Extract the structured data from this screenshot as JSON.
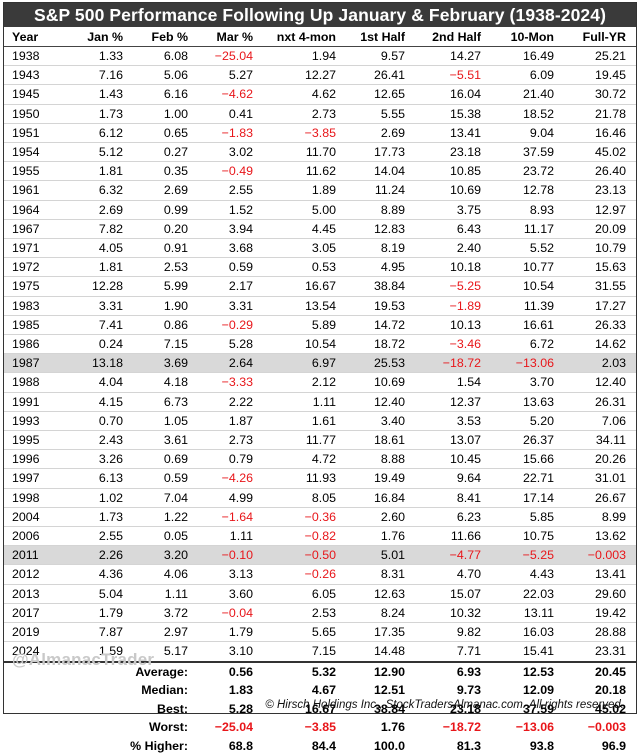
{
  "title": "S&P 500 Performance Following Up January & February (1938-2024)",
  "columns": [
    "Year",
    "Jan %",
    "Feb %",
    "Mar %",
    "nxt 4-mon",
    "1st Half",
    "2nd Half",
    "10-Mon",
    "Full-YR"
  ],
  "rows": [
    {
      "cells": [
        "1938",
        "1.33",
        "6.08",
        "−25.04",
        "1.94",
        "9.57",
        "14.27",
        "16.49",
        "25.21"
      ]
    },
    {
      "cells": [
        "1943",
        "7.16",
        "5.06",
        "5.27",
        "12.27",
        "26.41",
        "−5.51",
        "6.09",
        "19.45"
      ]
    },
    {
      "cells": [
        "1945",
        "1.43",
        "6.16",
        "−4.62",
        "4.62",
        "12.65",
        "16.04",
        "21.40",
        "30.72"
      ]
    },
    {
      "cells": [
        "1950",
        "1.73",
        "1.00",
        "0.41",
        "2.73",
        "5.55",
        "15.38",
        "18.52",
        "21.78"
      ]
    },
    {
      "cells": [
        "1951",
        "6.12",
        "0.65",
        "−1.83",
        "−3.85",
        "2.69",
        "13.41",
        "9.04",
        "16.46"
      ]
    },
    {
      "cells": [
        "1954",
        "5.12",
        "0.27",
        "3.02",
        "11.70",
        "17.73",
        "23.18",
        "37.59",
        "45.02"
      ]
    },
    {
      "cells": [
        "1955",
        "1.81",
        "0.35",
        "−0.49",
        "11.62",
        "14.04",
        "10.85",
        "23.72",
        "26.40"
      ]
    },
    {
      "cells": [
        "1961",
        "6.32",
        "2.69",
        "2.55",
        "1.89",
        "11.24",
        "10.69",
        "12.78",
        "23.13"
      ]
    },
    {
      "cells": [
        "1964",
        "2.69",
        "0.99",
        "1.52",
        "5.00",
        "8.89",
        "3.75",
        "8.93",
        "12.97"
      ]
    },
    {
      "cells": [
        "1967",
        "7.82",
        "0.20",
        "3.94",
        "4.45",
        "12.83",
        "6.43",
        "11.17",
        "20.09"
      ]
    },
    {
      "cells": [
        "1971",
        "4.05",
        "0.91",
        "3.68",
        "3.05",
        "8.19",
        "2.40",
        "5.52",
        "10.79"
      ]
    },
    {
      "cells": [
        "1972",
        "1.81",
        "2.53",
        "0.59",
        "0.53",
        "4.95",
        "10.18",
        "10.77",
        "15.63"
      ]
    },
    {
      "cells": [
        "1975",
        "12.28",
        "5.99",
        "2.17",
        "16.67",
        "38.84",
        "−5.25",
        "10.54",
        "31.55"
      ]
    },
    {
      "cells": [
        "1983",
        "3.31",
        "1.90",
        "3.31",
        "13.54",
        "19.53",
        "−1.89",
        "11.39",
        "17.27"
      ]
    },
    {
      "cells": [
        "1985",
        "7.41",
        "0.86",
        "−0.29",
        "5.89",
        "14.72",
        "10.13",
        "16.61",
        "26.33"
      ]
    },
    {
      "cells": [
        "1986",
        "0.24",
        "7.15",
        "5.28",
        "10.54",
        "18.72",
        "−3.46",
        "6.72",
        "14.62"
      ]
    },
    {
      "cells": [
        "1987",
        "13.18",
        "3.69",
        "2.64",
        "6.97",
        "25.53",
        "−18.72",
        "−13.06",
        "2.03"
      ],
      "highlight": true
    },
    {
      "cells": [
        "1988",
        "4.04",
        "4.18",
        "−3.33",
        "2.12",
        "10.69",
        "1.54",
        "3.70",
        "12.40"
      ]
    },
    {
      "cells": [
        "1991",
        "4.15",
        "6.73",
        "2.22",
        "1.11",
        "12.40",
        "12.37",
        "13.63",
        "26.31"
      ]
    },
    {
      "cells": [
        "1993",
        "0.70",
        "1.05",
        "1.87",
        "1.61",
        "3.40",
        "3.53",
        "5.20",
        "7.06"
      ]
    },
    {
      "cells": [
        "1995",
        "2.43",
        "3.61",
        "2.73",
        "11.77",
        "18.61",
        "13.07",
        "26.37",
        "34.11"
      ]
    },
    {
      "cells": [
        "1996",
        "3.26",
        "0.69",
        "0.79",
        "4.72",
        "8.88",
        "10.45",
        "15.66",
        "20.26"
      ]
    },
    {
      "cells": [
        "1997",
        "6.13",
        "0.59",
        "−4.26",
        "11.93",
        "19.49",
        "9.64",
        "22.71",
        "31.01"
      ]
    },
    {
      "cells": [
        "1998",
        "1.02",
        "7.04",
        "4.99",
        "8.05",
        "16.84",
        "8.41",
        "17.14",
        "26.67"
      ]
    },
    {
      "cells": [
        "2004",
        "1.73",
        "1.22",
        "−1.64",
        "−0.36",
        "2.60",
        "6.23",
        "5.85",
        "8.99"
      ]
    },
    {
      "cells": [
        "2006",
        "2.55",
        "0.05",
        "1.11",
        "−0.82",
        "1.76",
        "11.66",
        "10.75",
        "13.62"
      ]
    },
    {
      "cells": [
        "2011",
        "2.26",
        "3.20",
        "−0.10",
        "−0.50",
        "5.01",
        "−4.77",
        "−5.25",
        "−0.003"
      ],
      "highlight": true
    },
    {
      "cells": [
        "2012",
        "4.36",
        "4.06",
        "3.13",
        "−0.26",
        "8.31",
        "4.70",
        "4.43",
        "13.41"
      ]
    },
    {
      "cells": [
        "2013",
        "5.04",
        "1.11",
        "3.60",
        "6.05",
        "12.63",
        "15.07",
        "22.03",
        "29.60"
      ]
    },
    {
      "cells": [
        "2017",
        "1.79",
        "3.72",
        "−0.04",
        "2.53",
        "8.24",
        "10.32",
        "13.11",
        "19.42"
      ]
    },
    {
      "cells": [
        "2019",
        "7.87",
        "2.97",
        "1.79",
        "5.65",
        "17.35",
        "9.82",
        "16.03",
        "28.88"
      ]
    },
    {
      "cells": [
        "2024",
        "1.59",
        "5.17",
        "3.10",
        "7.15",
        "14.48",
        "7.71",
        "15.41",
        "23.31"
      ]
    }
  ],
  "summary": [
    {
      "label": "Average:",
      "values": [
        "0.56",
        "5.32",
        "12.90",
        "6.93",
        "12.53",
        "20.45"
      ]
    },
    {
      "label": "Median:",
      "values": [
        "1.83",
        "4.67",
        "12.51",
        "9.73",
        "12.09",
        "20.18"
      ]
    },
    {
      "label": "Best:",
      "values": [
        "5.28",
        "16.67",
        "38.84",
        "23.18",
        "37.59",
        "45.02"
      ]
    },
    {
      "label": "Worst:",
      "values": [
        "−25.04",
        "−3.85",
        "1.76",
        "−18.72",
        "−13.06",
        "−0.003"
      ]
    },
    {
      "label": "% Higher:",
      "values": [
        "68.8",
        "84.4",
        "100.0",
        "81.3",
        "93.8",
        "96.9"
      ]
    }
  ],
  "watermark": "@AlmanacTrader",
  "footer": "© Hirsch Holdings Inc., StockTradersAlmanac.com. All rights reserved.",
  "colors": {
    "title_bg": "#3a3a3a",
    "negative": "#e8161a",
    "highlight_row": "#d9d9d9"
  }
}
